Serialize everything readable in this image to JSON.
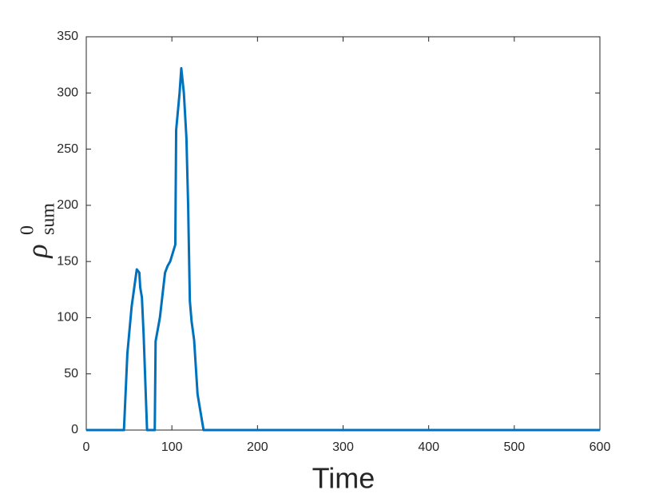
{
  "chart_data": {
    "type": "line",
    "xlabel": "Time",
    "ylabel": {
      "symbol": "ρ",
      "sup": "0",
      "sub": "sum"
    },
    "x": [
      0,
      44,
      48,
      53,
      59,
      62,
      63,
      65,
      67,
      71,
      80,
      81,
      86,
      92,
      95,
      98,
      104,
      105,
      109,
      111,
      114,
      117,
      119,
      121,
      123,
      126,
      130,
      137,
      600
    ],
    "series": [
      {
        "color": "#0072bd",
        "values": [
          0,
          0,
          68,
          110,
          143,
          140,
          127,
          118,
          85,
          0,
          0,
          79,
          100,
          140,
          146,
          150,
          165,
          267,
          300,
          322,
          300,
          260,
          200,
          115,
          97,
          80,
          32,
          0,
          0
        ]
      }
    ],
    "xlim": [
      0,
      600
    ],
    "xticks": [
      0,
      100,
      200,
      300,
      400,
      500,
      600
    ],
    "ylim": [
      0,
      350
    ],
    "yticks": [
      0,
      50,
      100,
      150,
      200,
      250,
      300,
      350
    ],
    "grid": false
  }
}
